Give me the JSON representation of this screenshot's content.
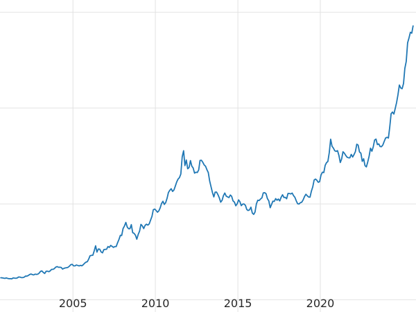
{
  "chart_data": {
    "type": "line",
    "title": "",
    "xlabel": "",
    "ylabel": "",
    "legend": false,
    "grid": true,
    "yticks_visible": false,
    "line_color": "#1f77b4",
    "grid_color": "#e2e2e2",
    "background_color": "#ffffff",
    "tick_label_color": "#262626",
    "xlim": [
      2000.58,
      2025.8
    ],
    "ylim": [
      -155,
      3755
    ],
    "xticks": [
      {
        "value": 2005,
        "label": "2005"
      },
      {
        "value": 2010,
        "label": "2010"
      },
      {
        "value": 2015,
        "label": "2015"
      },
      {
        "value": 2020,
        "label": "2020"
      }
    ],
    "ygridlines": [
      0,
      1200,
      2400,
      3600
    ],
    "series_interval": "monthly",
    "x_start_year": 2000,
    "x_start_month": 8,
    "values": [
      274,
      273,
      270,
      266,
      272,
      266,
      262,
      263,
      260,
      272,
      270,
      267,
      272,
      284,
      283,
      276,
      276,
      281,
      295,
      294,
      302,
      314,
      321,
      313,
      310,
      319,
      316,
      319,
      333,
      356,
      359,
      340,
      328,
      355,
      356,
      351,
      360,
      379,
      379,
      389,
      407,
      414,
      405,
      406,
      403,
      383,
      392,
      398,
      400,
      405,
      420,
      439,
      442,
      424,
      423,
      434,
      429,
      422,
      430,
      424,
      437,
      456,
      470,
      476,
      510,
      550,
      555,
      557,
      611,
      675,
      596,
      634,
      632,
      598,
      586,
      627,
      630,
      631,
      665,
      655,
      679,
      667,
      655,
      665,
      665,
      713,
      755,
      806,
      803,
      890,
      922,
      968,
      910,
      889,
      889,
      940,
      839,
      830,
      807,
      757,
      816,
      858,
      943,
      924,
      890,
      929,
      946,
      934,
      949,
      997,
      1043,
      1127,
      1135,
      1118,
      1095,
      1113,
      1149,
      1205,
      1233,
      1193,
      1216,
      1271,
      1342,
      1370,
      1390,
      1356,
      1374,
      1424,
      1473,
      1510,
      1529,
      1573,
      1790,
      1866,
      1680,
      1750,
      1640,
      1656,
      1743,
      1674,
      1650,
      1585,
      1597,
      1593,
      1626,
      1744,
      1747,
      1721,
      1688,
      1671,
      1627,
      1593,
      1487,
      1414,
      1343,
      1287,
      1347,
      1348,
      1316,
      1276,
      1221,
      1244,
      1301,
      1336,
      1298,
      1288,
      1279,
      1311,
      1295,
      1238,
      1222,
      1176,
      1201,
      1250,
      1227,
      1178,
      1197,
      1199,
      1181,
      1130,
      1117,
      1125,
      1159,
      1086,
      1068,
      1097,
      1200,
      1246,
      1242,
      1261,
      1276,
      1337,
      1340,
      1327,
      1266,
      1238,
      1152,
      1192,
      1234,
      1231,
      1266,
      1246,
      1260,
      1237,
      1283,
      1314,
      1280,
      1282,
      1264,
      1331,
      1330,
      1325,
      1335,
      1303,
      1282,
      1238,
      1201,
      1198,
      1215,
      1221,
      1250,
      1292,
      1320,
      1301,
      1286,
      1284,
      1359,
      1413,
      1499,
      1511,
      1495,
      1471,
      1479,
      1561,
      1597,
      1592,
      1683,
      1716,
      1732,
      1843,
      2010,
      1922,
      1900,
      1866,
      1858,
      1867,
      1808,
      1718,
      1762,
      1853,
      1835,
      1807,
      1784,
      1777,
      1777,
      1820,
      1787,
      1817,
      1856,
      1948,
      1937,
      1850,
      1836,
      1733,
      1765,
      1681,
      1664,
      1725,
      1798,
      1898,
      1860,
      1913,
      2000,
      2012,
      1943,
      1951,
      1918,
      1916,
      1938,
      1984,
      2026,
      2034,
      2025,
      2160,
      2330,
      2351,
      2326,
      2398,
      2470,
      2568,
      2690,
      2652,
      2644,
      2708,
      2897,
      2984,
      3218,
      3280,
      3350,
      3340,
      3430
    ]
  }
}
